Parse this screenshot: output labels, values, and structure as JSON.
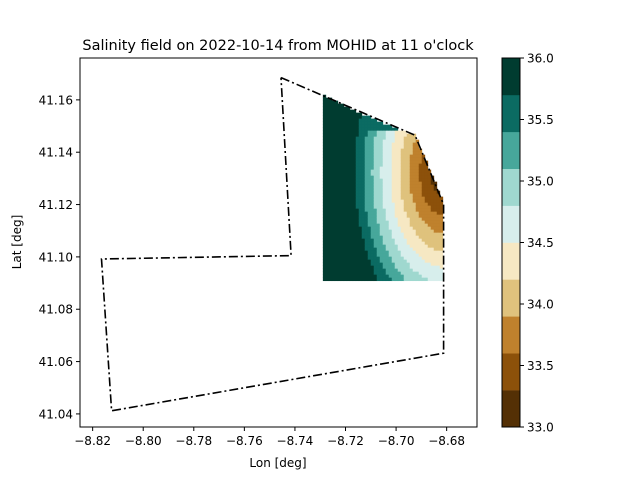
{
  "chart_data": {
    "type": "heatmap",
    "title": "Salinity field on 2022-10-14 from MOHID at 11 o'clock",
    "xlabel": "Lon [deg]",
    "ylabel": "Lat [deg]",
    "xlim": [
      -8.825,
      -8.668
    ],
    "ylim": [
      41.035,
      41.176
    ],
    "x_ticks": [
      -8.82,
      -8.8,
      -8.78,
      -8.76,
      -8.74,
      -8.72,
      -8.7,
      -8.68
    ],
    "x_tick_labels": [
      "−8.82",
      "−8.80",
      "−8.78",
      "−8.76",
      "−8.74",
      "−8.72",
      "−8.70",
      "−8.68"
    ],
    "y_ticks": [
      41.04,
      41.06,
      41.08,
      41.1,
      41.12,
      41.14,
      41.16
    ],
    "y_tick_labels": [
      "41.04",
      "41.06",
      "41.08",
      "41.10",
      "41.12",
      "41.14",
      "41.16"
    ],
    "grid": false,
    "boundary_polygon": {
      "style": "dash-dot",
      "color": "#000000",
      "points": [
        [
          -8.7455,
          41.1685
        ],
        [
          -8.6925,
          41.1465
        ],
        [
          -8.6812,
          41.12
        ],
        [
          -8.6812,
          41.0632
        ],
        [
          -8.8125,
          41.0412
        ],
        [
          -8.8165,
          41.0992
        ],
        [
          -8.7415,
          41.1005
        ],
        [
          -8.7455,
          41.1685
        ]
      ]
    },
    "field_extent": {
      "lon": [
        -8.729,
        -8.681
      ],
      "lat": [
        41.0905,
        41.162
      ]
    },
    "field_description": "Salinity high (about 35.5-36) in the western and northern part of the domain, decreasing eastward to about 33 near the river mouth at -8.68 lon, 41.13-41.14 lat",
    "colorbar": {
      "min": 33.0,
      "max": 36.0,
      "ticks": [
        33.0,
        33.5,
        34.0,
        34.5,
        35.0,
        35.5,
        36.0
      ],
      "tick_labels": [
        "33.0",
        "33.5",
        "34.0",
        "34.5",
        "35.0",
        "35.5",
        "36.0"
      ],
      "levels": [
        33.0,
        33.3,
        33.6,
        33.9,
        34.2,
        34.5,
        34.8,
        35.1,
        35.4,
        35.7,
        36.0
      ],
      "colors": [
        "#543005",
        "#8c510a",
        "#bf812d",
        "#dfc27d",
        "#f6e8c3",
        "#d7eeec",
        "#9fd8cf",
        "#47a79b",
        "#0b6b62",
        "#003c30"
      ],
      "colormap": "BrBG"
    }
  }
}
